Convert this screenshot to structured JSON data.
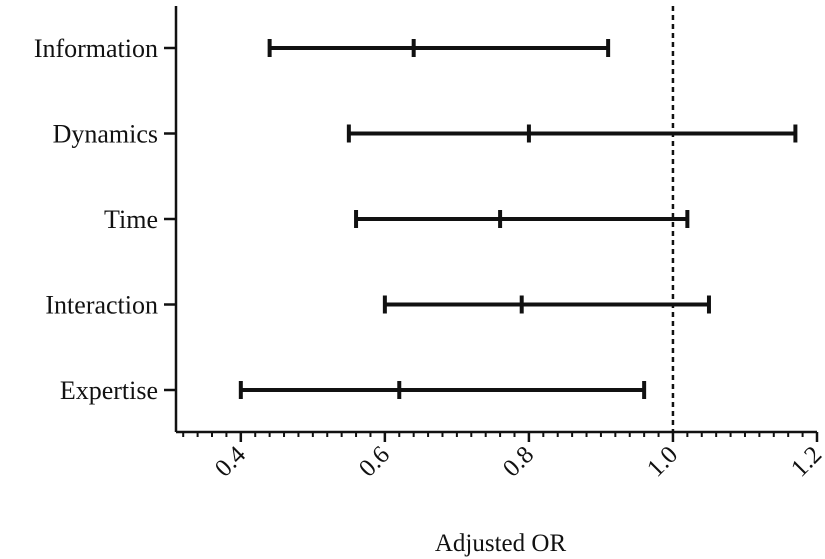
{
  "chart_data": {
    "type": "forest",
    "title": "",
    "xlabel": "Adjusted OR",
    "ylabel": "",
    "xlim": [
      0.31,
      1.2
    ],
    "x_ticks": [
      "0.4",
      "0.6",
      "0.8",
      "1.0",
      "1.2"
    ],
    "reference_line": 1.0,
    "grid": false,
    "legend": "none",
    "categories": [
      "Information",
      "Dynamics",
      "Time",
      "Interaction",
      "Expertise"
    ],
    "series": [
      {
        "values": [
          {
            "category": "Information",
            "estimate": 0.64,
            "lower": 0.44,
            "upper": 0.91
          },
          {
            "category": "Dynamics",
            "estimate": 0.8,
            "lower": 0.55,
            "upper": 1.17
          },
          {
            "category": "Time",
            "estimate": 0.76,
            "lower": 0.56,
            "upper": 1.02
          },
          {
            "category": "Interaction",
            "estimate": 0.79,
            "lower": 0.6,
            "upper": 1.05
          },
          {
            "category": "Expertise",
            "estimate": 0.62,
            "lower": 0.4,
            "upper": 0.96
          }
        ]
      }
    ],
    "colors": {
      "line": "#111111",
      "reference": "#111111"
    }
  }
}
